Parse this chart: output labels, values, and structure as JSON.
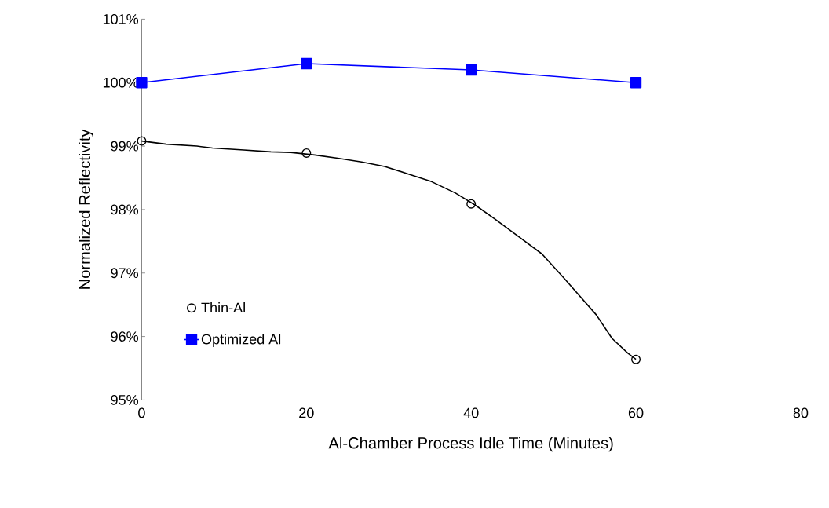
{
  "chart_data": {
    "type": "line",
    "xlabel": "Al-Chamber Process Idle Time (Minutes)",
    "ylabel": "Normalized Reflectivity",
    "xlim": [
      0,
      80
    ],
    "xticks": [
      0,
      20,
      40,
      60,
      80
    ],
    "ylim": [
      95,
      101
    ],
    "yticks": [
      {
        "value": 95,
        "label": "95%"
      },
      {
        "value": 96,
        "label": "96%"
      },
      {
        "value": 97,
        "label": "97%"
      },
      {
        "value": 98,
        "label": "98%"
      },
      {
        "value": 99,
        "label": "99%"
      },
      {
        "value": 100,
        "label": "100%"
      },
      {
        "value": 101,
        "label": "101%"
      }
    ],
    "grid": false,
    "legend": "left",
    "series": [
      {
        "marker": "none",
        "color": "#000000",
        "x": [
          0,
          3,
          6.7,
          8.6,
          12.4,
          15.7,
          18.1,
          21,
          23.8,
          26.7,
          29.5,
          32.4,
          35.2,
          38.1,
          40.5,
          42.9,
          45.7,
          48.6,
          51.4,
          55.2,
          57.1,
          59,
          60
        ],
        "values": [
          99.08,
          99.03,
          99.0,
          98.97,
          98.94,
          98.91,
          98.9,
          98.86,
          98.81,
          98.75,
          98.68,
          98.56,
          98.44,
          98.26,
          98.07,
          97.85,
          97.58,
          97.3,
          96.9,
          96.34,
          95.97,
          95.74,
          95.64
        ]
      },
      {
        "type": "scatter",
        "name": "Thin-Al",
        "marker": "circle",
        "color": "#000000",
        "x": [
          0,
          20,
          40,
          60
        ],
        "values": [
          99.08,
          98.89,
          98.09,
          95.64
        ]
      },
      {
        "type": "line",
        "name": "Optimized Al",
        "marker": "square",
        "color": "#0000ff",
        "x": [
          0,
          20,
          40,
          60
        ],
        "values": [
          100.0,
          100.3,
          100.2,
          100.0
        ]
      }
    ]
  }
}
